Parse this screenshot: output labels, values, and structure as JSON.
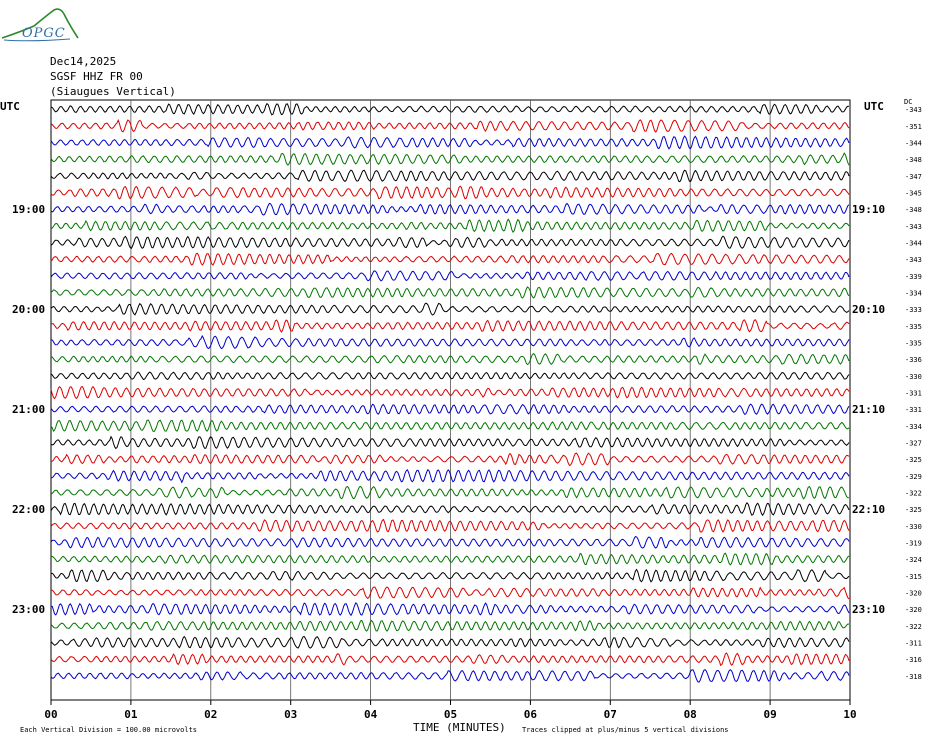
{
  "logo": {
    "text": "OPGC"
  },
  "header": {
    "date": "Dec14,2025",
    "station": "SGSF HHZ FR 00",
    "location": "(Siaugues Vertical)"
  },
  "axes": {
    "left_utc": "UTC",
    "right_utc": "UTC",
    "dc_label": "DC"
  },
  "footer": {
    "scale": "Each Vertical Division =  100.00 microvolts",
    "xlabel": "TIME (MINUTES)",
    "clip_note": "Traces clipped at plus/minus 5 vertical divisions"
  },
  "colors": {
    "trace_cycle": [
      "#000000",
      "#dd0000",
      "#0000cc",
      "#007700"
    ],
    "grid": "#000000"
  },
  "chart_data": {
    "type": "line",
    "title": "Dec14,2025 SGSF HHZ FR 00 (Siaugues Vertical)",
    "xlabel": "TIME (MINUTES)",
    "x_ticks": [
      "00",
      "01",
      "02",
      "03",
      "04",
      "05",
      "06",
      "07",
      "08",
      "09",
      "10"
    ],
    "xlim": [
      0,
      10
    ],
    "left_hour_labels": [
      {
        "row": 6,
        "text": "19:00"
      },
      {
        "row": 12,
        "text": "20:00"
      },
      {
        "row": 18,
        "text": "21:00"
      },
      {
        "row": 24,
        "text": "22:00"
      },
      {
        "row": 30,
        "text": "23:00"
      }
    ],
    "right_hour_labels": [
      {
        "row": 6,
        "text": "19:10"
      },
      {
        "row": 12,
        "text": "20:10"
      },
      {
        "row": 18,
        "text": "21:10"
      },
      {
        "row": 24,
        "text": "22:10"
      },
      {
        "row": 30,
        "text": "23:10"
      }
    ],
    "dc_offsets": [
      -343,
      -351,
      -344,
      -348,
      -347,
      -345,
      -348,
      -343,
      -344,
      -343,
      -339,
      -334,
      -333,
      -335,
      -335,
      -336,
      -330,
      -331,
      -331,
      -334,
      -327,
      -325,
      -329,
      -322,
      -325,
      -330,
      -319,
      -324,
      -315,
      -320,
      -320,
      -322,
      -311,
      -316,
      -318
    ],
    "traces_per_hour": 6,
    "minutes_per_trace": 10
  }
}
